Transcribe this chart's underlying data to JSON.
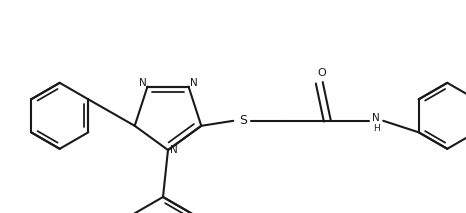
{
  "background_color": "#ffffff",
  "line_color": "#1a1a1a",
  "line_width": 1.5,
  "figsize": [
    4.66,
    2.13
  ],
  "dpi": 100,
  "xlim": [
    0,
    466
  ],
  "ylim": [
    0,
    213
  ]
}
